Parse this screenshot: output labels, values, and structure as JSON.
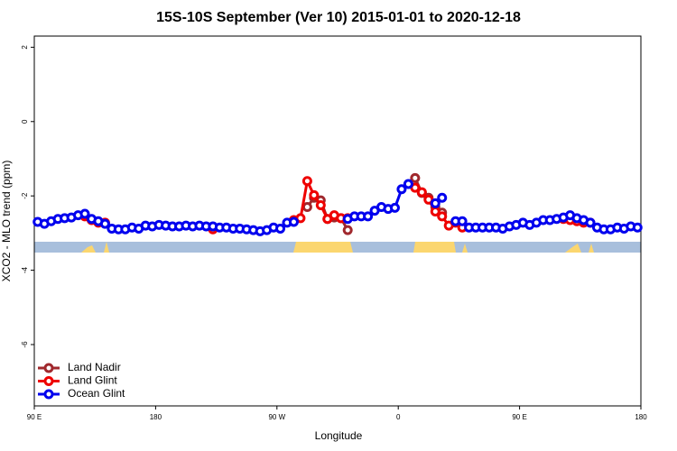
{
  "chart_data": {
    "type": "line",
    "title": "15S-10S September (Ver 10)   2015-01-01 to 2020-12-18",
    "x_label": "Longitude",
    "y_label": "XCO2 - MLO trend (ppm)",
    "xlim": [
      90,
      540
    ],
    "ylim": [
      -7.65,
      2.3
    ],
    "xticks": [
      {
        "value": 90,
        "label": "90 E"
      },
      180,
      {
        "value": 270,
        "label": "90 W"
      },
      {
        "value": 360,
        "label": "0"
      },
      {
        "value": 450,
        "label": "90 E"
      },
      {
        "value": 540,
        "label": "180"
      }
    ],
    "yticks": [
      2,
      0,
      -2,
      -4,
      -6
    ],
    "legend": "bottom-left",
    "series": [
      {
        "name": "Land Nadir",
        "color": "#a0282d",
        "x": [
          292.5,
          297.5,
          302.5,
          307.5,
          312.5,
          317.5,
          322.5,
          327.5,
          372.5,
          377.5,
          382.5,
          387.5,
          392.5
        ],
        "values": [
          -2.3,
          -2.05,
          -2.12,
          -2.62,
          -2.58,
          -2.6,
          -2.92,
          null,
          -1.52,
          -1.92,
          -2.05,
          -2.3,
          -2.45
        ]
      },
      {
        "name": "Land Glint",
        "color": "#ee0000",
        "x": [
          127.5,
          132.5,
          137.5,
          142.5,
          147.5,
          222.5,
          227.5,
          282.5,
          287.5,
          292.5,
          297.5,
          302.5,
          307.5,
          312.5,
          317.5,
          322.5,
          327.5,
          372.5,
          377.5,
          382.5,
          387.5,
          392.5,
          397.5,
          402.5,
          407.5,
          412.5,
          482.5,
          487.5,
          492.5,
          497.5,
          502.5
        ],
        "values": [
          -2.55,
          -2.65,
          -2.72,
          -2.72,
          null,
          -2.9,
          null,
          -2.65,
          -2.6,
          -1.6,
          -1.98,
          -2.25,
          -2.62,
          -2.52,
          -2.6,
          -2.6,
          null,
          -1.78,
          -1.9,
          -2.1,
          -2.42,
          -2.55,
          -2.8,
          -2.72,
          -2.85,
          null,
          -2.62,
          -2.65,
          -2.68,
          -2.72,
          -2.72
        ]
      },
      {
        "name": "Ocean Glint",
        "color": "#0000ee",
        "x": [
          92.5,
          97.5,
          102.5,
          107.5,
          112.5,
          117.5,
          122.5,
          127.5,
          132.5,
          137.5,
          142.5,
          147.5,
          152.5,
          157.5,
          162.5,
          167.5,
          172.5,
          177.5,
          182.5,
          187.5,
          192.5,
          197.5,
          202.5,
          207.5,
          212.5,
          217.5,
          222.5,
          227.5,
          232.5,
          237.5,
          242.5,
          247.5,
          252.5,
          257.5,
          262.5,
          267.5,
          272.5,
          277.5,
          282.5,
          287.5,
          292.5,
          297.5,
          302.5,
          307.5,
          312.5,
          317.5,
          322.5,
          327.5,
          332.5,
          337.5,
          342.5,
          347.5,
          352.5,
          357.5,
          362.5,
          367.5,
          372.5,
          377.5,
          382.5,
          387.5,
          392.5,
          397.5,
          402.5,
          407.5,
          412.5,
          417.5,
          422.5,
          427.5,
          432.5,
          437.5,
          442.5,
          447.5,
          452.5,
          457.5,
          462.5,
          467.5,
          472.5,
          477.5,
          482.5,
          487.5,
          492.5,
          497.5,
          502.5,
          507.5,
          512.5,
          517.5,
          522.5,
          527.5,
          532.5,
          537.5
        ],
        "values": [
          -2.7,
          -2.75,
          -2.68,
          -2.62,
          -2.6,
          -2.58,
          -2.52,
          -2.48,
          -2.62,
          -2.68,
          -2.75,
          -2.88,
          -2.9,
          -2.9,
          -2.85,
          -2.88,
          -2.8,
          -2.82,
          -2.78,
          -2.8,
          -2.82,
          -2.82,
          -2.8,
          -2.82,
          -2.8,
          -2.82,
          -2.82,
          -2.85,
          -2.85,
          -2.88,
          -2.88,
          -2.9,
          -2.92,
          -2.95,
          -2.92,
          -2.85,
          -2.88,
          -2.72,
          -2.7,
          null,
          null,
          null,
          null,
          null,
          null,
          null,
          -2.62,
          -2.55,
          -2.55,
          -2.55,
          -2.4,
          -2.3,
          -2.35,
          -2.32,
          -1.82,
          -1.68,
          null,
          null,
          null,
          -2.2,
          -2.05,
          null,
          -2.68,
          -2.68,
          -2.85,
          -2.85,
          -2.85,
          -2.85,
          -2.85,
          -2.88,
          -2.82,
          -2.78,
          -2.72,
          -2.78,
          -2.72,
          -2.65,
          -2.65,
          -2.62,
          -2.58,
          -2.52,
          -2.6,
          -2.65,
          -2.72,
          -2.85,
          -2.9,
          -2.9,
          -2.85,
          -2.88,
          -2.82,
          -2.85
        ]
      }
    ]
  }
}
